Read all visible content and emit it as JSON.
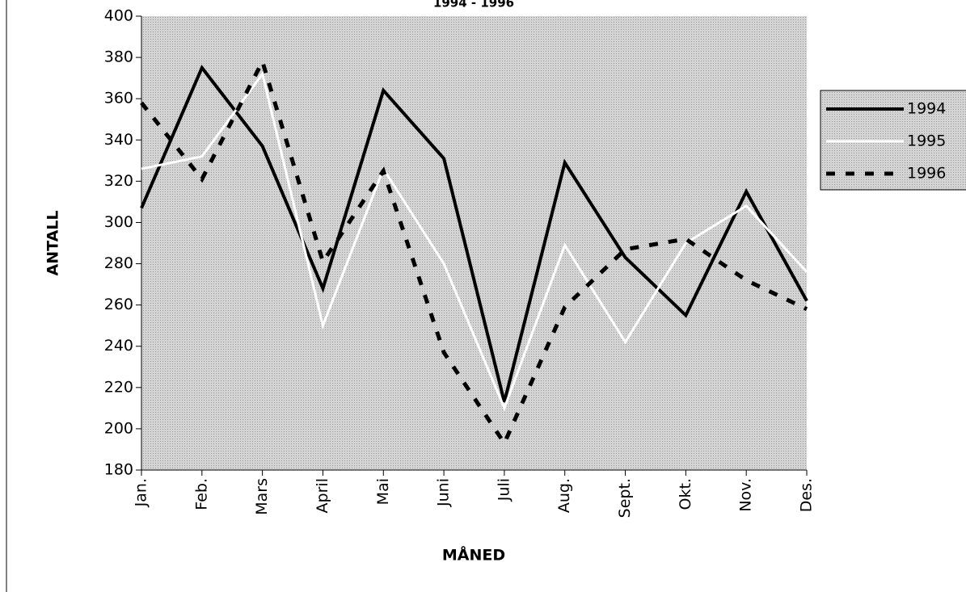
{
  "chart_data": {
    "type": "line",
    "title": "1994 - 1996",
    "xlabel": "MÅNED",
    "ylabel": "ANTALL",
    "categories": [
      "Jan.",
      "Feb.",
      "Mars",
      "April",
      "Mai",
      "Juni",
      "Juli",
      "Aug.",
      "Sept.",
      "Okt.",
      "Nov.",
      "Des."
    ],
    "series": [
      {
        "name": "1994",
        "color": "#000000",
        "line_style": "solid",
        "values": [
          307,
          375,
          337,
          268,
          364,
          331,
          213,
          329,
          283,
          255,
          315,
          262
        ]
      },
      {
        "name": "1995",
        "color": "#ffffff",
        "line_style": "solid",
        "values": [
          326,
          332,
          372,
          250,
          326,
          280,
          210,
          289,
          242,
          290,
          308,
          276
        ]
      },
      {
        "name": "1996",
        "color": "#000000",
        "line_style": "dashed",
        "values": [
          358,
          321,
          378,
          281,
          325,
          237,
          193,
          259,
          287,
          292,
          272,
          258
        ]
      }
    ],
    "ylim": [
      180,
      400
    ],
    "yticks": [
      180,
      200,
      220,
      240,
      260,
      280,
      300,
      320,
      340,
      360,
      380,
      400
    ],
    "legend": "right"
  }
}
